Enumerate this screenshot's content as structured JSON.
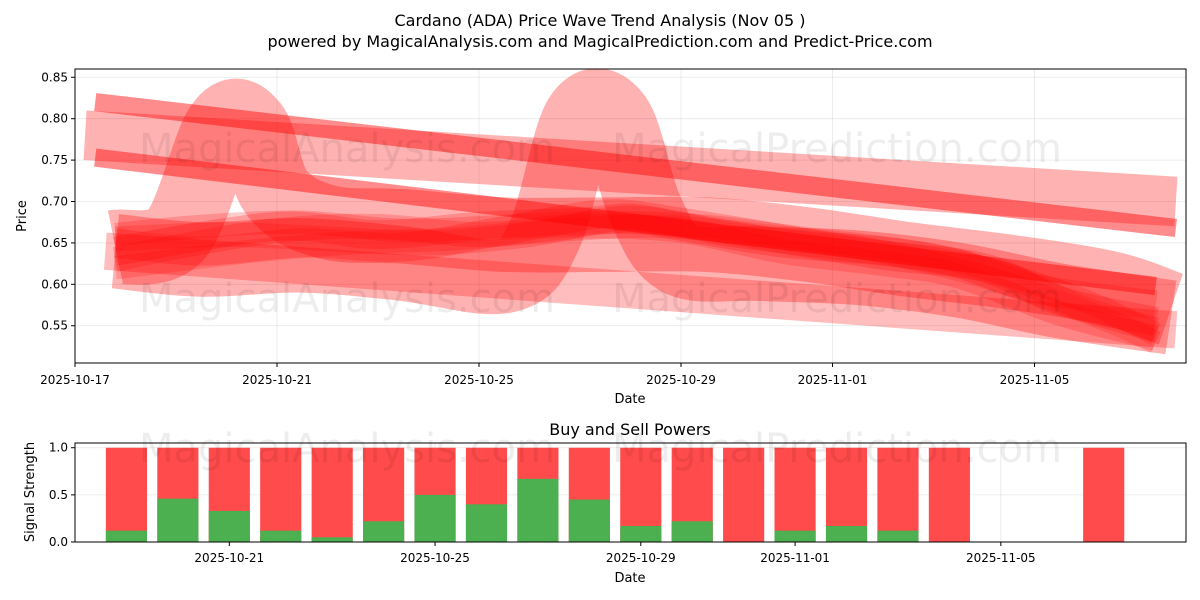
{
  "title_line1": "Cardano (ADA) Price Wave Trend Analysis (Nov 05 )",
  "title_line2": "powered by MagicalAnalysis.com and MagicalPrediction.com and Predict-Price.com",
  "watermarks": [
    "MagicalAnalysis.com",
    "MagicalPrediction.com"
  ],
  "colors": {
    "band": "#ff0000",
    "buy": "#4caf50",
    "sell": "#ff4b4b"
  },
  "chart_data": [
    {
      "type": "area",
      "title": "Cardano (ADA) Price Wave Trend Analysis (Nov 05 )",
      "xlabel": "Date",
      "ylabel": "Price",
      "ylim": [
        0.505,
        0.86
      ],
      "x_start": "2025-10-17",
      "x_days_range": [
        0.0,
        22.0
      ],
      "x_ticks": [
        {
          "day": 0,
          "label": "2025-10-17"
        },
        {
          "day": 4,
          "label": "2025-10-21"
        },
        {
          "day": 8,
          "label": "2025-10-25"
        },
        {
          "day": 12,
          "label": "2025-10-29"
        },
        {
          "day": 15,
          "label": "2025-11-01"
        },
        {
          "day": 19,
          "label": "2025-11-05"
        }
      ],
      "y_ticks": [
        0.55,
        0.6,
        0.65,
        0.7,
        0.75,
        0.8,
        0.85
      ],
      "y_tick_labels": [
        "0.55",
        "0.60",
        "0.65",
        "0.70",
        "0.75",
        "0.80",
        "0.85"
      ],
      "grid": true,
      "series": [
        {
          "name": "upper-trend-band",
          "opacity": 0.3,
          "width": 0.06,
          "x": [
            0.2,
            21.8
          ],
          "y": [
            0.78,
            0.7
          ]
        },
        {
          "name": "upper-trend-line",
          "opacity": 0.45,
          "width": 0.022,
          "x": [
            0.4,
            21.8
          ],
          "y": [
            0.82,
            0.668
          ]
        },
        {
          "name": "middle-trend-line",
          "opacity": 0.45,
          "width": 0.022,
          "x": [
            0.4,
            21.4
          ],
          "y": [
            0.753,
            0.598
          ]
        },
        {
          "name": "wave-peak-1",
          "opacity": 0.3,
          "width": 0.09,
          "x": [
            0.8,
            2.0,
            2.9,
            3.5,
            4.0,
            5.0,
            6.5,
            8.5,
            10.5,
            12.5,
            14.5,
            16.5,
            18.5,
            20.5,
            21.7
          ],
          "y": [
            0.645,
            0.66,
            0.79,
            0.79,
            0.71,
            0.675,
            0.67,
            0.66,
            0.66,
            0.66,
            0.648,
            0.63,
            0.615,
            0.595,
            0.57
          ]
        },
        {
          "name": "wave-peak-2",
          "opacity": 0.3,
          "width": 0.09,
          "x": [
            0.8,
            2.5,
            4.5,
            6.5,
            8.5,
            9.3,
            10.0,
            10.7,
            11.3,
            12.0,
            13.5,
            15.5,
            17.5,
            19.5,
            21.7
          ],
          "y": [
            0.64,
            0.63,
            0.635,
            0.625,
            0.61,
            0.66,
            0.8,
            0.8,
            0.69,
            0.63,
            0.625,
            0.62,
            0.605,
            0.58,
            0.56
          ]
        },
        {
          "name": "wave-ribbon-1",
          "opacity": 0.22,
          "width": 0.035,
          "x": [
            0.8,
            4.0,
            6.0,
            8.0,
            10.0,
            11.0,
            12.0,
            14.0,
            16.0,
            17.5,
            19.0,
            21.4
          ],
          "y": [
            0.64,
            0.67,
            0.66,
            0.67,
            0.675,
            0.68,
            0.67,
            0.65,
            0.64,
            0.625,
            0.595,
            0.575
          ]
        },
        {
          "name": "wave-ribbon-2",
          "opacity": 0.22,
          "width": 0.035,
          "x": [
            0.8,
            2.5,
            4.5,
            6.5,
            8.5,
            10.5,
            12.0,
            14.0,
            16.0,
            18.0,
            19.5,
            21.4
          ],
          "y": [
            0.65,
            0.64,
            0.65,
            0.645,
            0.665,
            0.685,
            0.675,
            0.655,
            0.635,
            0.62,
            0.58,
            0.555
          ]
        },
        {
          "name": "wave-ribbon-3",
          "opacity": 0.2,
          "width": 0.03,
          "x": [
            0.8,
            3.0,
            5.0,
            7.0,
            9.0,
            11.0,
            13.0,
            15.0,
            17.0,
            18.5,
            20.0,
            21.4
          ],
          "y": [
            0.655,
            0.66,
            0.655,
            0.65,
            0.66,
            0.68,
            0.66,
            0.645,
            0.63,
            0.61,
            0.57,
            0.545
          ]
        },
        {
          "name": "wave-ribbon-4",
          "opacity": 0.2,
          "width": 0.03,
          "x": [
            0.8,
            2.0,
            4.0,
            6.0,
            8.0,
            10.0,
            12.0,
            14.0,
            16.0,
            17.5,
            19.5,
            21.4
          ],
          "y": [
            0.63,
            0.645,
            0.665,
            0.67,
            0.66,
            0.67,
            0.665,
            0.64,
            0.625,
            0.61,
            0.565,
            0.535
          ]
        },
        {
          "name": "wave-ribbon-5",
          "opacity": 0.2,
          "width": 0.028,
          "x": [
            0.8,
            2.5,
            4.5,
            6.5,
            8.5,
            10.5,
            12.5,
            14.5,
            16.5,
            18.0,
            20.0,
            21.4
          ],
          "y": [
            0.66,
            0.67,
            0.675,
            0.665,
            0.67,
            0.675,
            0.67,
            0.655,
            0.64,
            0.62,
            0.58,
            0.54
          ]
        },
        {
          "name": "wave-ribbon-6",
          "opacity": 0.18,
          "width": 0.028,
          "x": [
            0.8,
            3.5,
            5.5,
            7.5,
            9.5,
            11.5,
            13.5,
            15.5,
            17.0,
            18.5,
            20.5,
            21.4
          ],
          "y": [
            0.62,
            0.64,
            0.65,
            0.655,
            0.665,
            0.67,
            0.66,
            0.645,
            0.625,
            0.6,
            0.555,
            0.53
          ]
        },
        {
          "name": "lower-trend-band",
          "opacity": 0.26,
          "width": 0.045,
          "x": [
            0.6,
            21.8
          ],
          "y": [
            0.64,
            0.545
          ]
        }
      ]
    },
    {
      "type": "bar",
      "title": "Buy and Sell Powers",
      "xlabel": "Date",
      "ylabel": "Signal Strength",
      "ylim": [
        0.0,
        1.05
      ],
      "y_ticks": [
        0.0,
        0.5,
        1.0
      ],
      "y_tick_labels": [
        "0.0",
        "0.5",
        "1.0"
      ],
      "grid": true,
      "x_ticks": [
        {
          "day": 4,
          "label": "2025-10-21"
        },
        {
          "day": 8,
          "label": "2025-10-25"
        },
        {
          "day": 12,
          "label": "2025-10-29"
        },
        {
          "day": 15,
          "label": "2025-11-01"
        },
        {
          "day": 19,
          "label": "2025-11-05"
        }
      ],
      "categories": [
        "2025-10-19",
        "2025-10-20",
        "2025-10-21",
        "2025-10-22",
        "2025-10-23",
        "2025-10-24",
        "2025-10-25",
        "2025-10-26",
        "2025-10-27",
        "2025-10-28",
        "2025-10-29",
        "2025-10-30",
        "2025-10-31",
        "2025-11-01",
        "2025-11-02",
        "2025-11-03",
        "2025-11-04",
        "2025-11-07"
      ],
      "x_days": [
        2,
        3,
        4,
        5,
        6,
        7,
        8,
        9,
        10,
        11,
        12,
        13,
        14,
        15,
        16,
        17,
        18,
        21
      ],
      "series": [
        {
          "name": "Buy",
          "values": [
            0.12,
            0.46,
            0.33,
            0.12,
            0.05,
            0.22,
            0.5,
            0.4,
            0.67,
            0.45,
            0.17,
            0.22,
            0.0,
            0.12,
            0.17,
            0.12,
            0.0,
            0.0
          ]
        },
        {
          "name": "Total",
          "values": [
            1,
            1,
            1,
            1,
            1,
            1,
            1,
            1,
            1,
            1,
            1,
            1,
            1,
            1,
            1,
            1,
            1,
            1
          ]
        }
      ]
    }
  ]
}
